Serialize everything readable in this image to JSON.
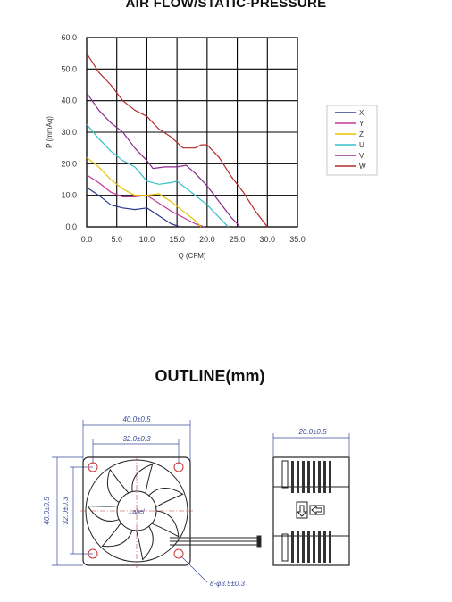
{
  "chart_data": {
    "type": "line",
    "title": "AIR FLOW/STATIC-PRESSURE",
    "xlabel": "Q (CFM)",
    "ylabel": "P (mmAq)",
    "xlim": [
      0,
      35
    ],
    "ylim": [
      0,
      60
    ],
    "x_ticks": [
      "0.0",
      "5.0",
      "10.0",
      "15.0",
      "20.0",
      "25.0",
      "30.0",
      "35.0"
    ],
    "y_ticks": [
      "0.0",
      "10.0",
      "20.0",
      "30.0",
      "40.0",
      "50.0",
      "60.0"
    ],
    "grid": true,
    "legend_position": "right",
    "series": [
      {
        "name": "X",
        "color": "#2b3a8c",
        "x": [
          0,
          2,
          4,
          6,
          8,
          10,
          12,
          14,
          15.5
        ],
        "y": [
          12.5,
          10,
          7,
          6,
          5.5,
          6,
          3.5,
          1,
          0
        ]
      },
      {
        "name": "Y",
        "color": "#c0399a",
        "x": [
          0,
          2,
          4,
          6,
          8,
          10,
          12,
          14,
          16,
          18,
          19.5
        ],
        "y": [
          16.5,
          14,
          11,
          9.5,
          9.5,
          10,
          7.5,
          5,
          3,
          1,
          0
        ]
      },
      {
        "name": "Z",
        "color": "#e8c200",
        "x": [
          0,
          2,
          4,
          6,
          8,
          10,
          12,
          14,
          16,
          18,
          19
        ],
        "y": [
          22,
          19,
          15,
          12,
          10,
          10,
          10.5,
          8,
          5,
          2,
          0
        ]
      },
      {
        "name": "U",
        "color": "#35bfc8",
        "x": [
          0,
          2,
          4,
          6,
          8,
          10,
          12,
          14,
          15,
          16,
          18,
          20,
          22,
          23.5
        ],
        "y": [
          32.5,
          28,
          24,
          21,
          19,
          14.5,
          13.5,
          14,
          14.5,
          13,
          10,
          7,
          3,
          0
        ]
      },
      {
        "name": "V",
        "color": "#8a2a8e",
        "x": [
          0,
          2,
          4,
          6,
          8,
          10,
          11,
          13,
          15,
          16.5,
          18,
          20,
          22,
          24,
          25.5
        ],
        "y": [
          42.5,
          37,
          33,
          30,
          25,
          21,
          18.5,
          19,
          19,
          19.5,
          17,
          13,
          8,
          3,
          0
        ]
      },
      {
        "name": "W",
        "color": "#b22b2b",
        "x": [
          0,
          2,
          4,
          6,
          8,
          10,
          12,
          14,
          16,
          18,
          19,
          20,
          22,
          24,
          26,
          28,
          30
        ],
        "y": [
          55,
          49,
          45,
          40,
          37,
          35,
          31,
          28.5,
          25,
          25,
          26,
          26,
          22,
          16,
          11,
          5,
          0
        ]
      }
    ]
  },
  "outline": {
    "title": "OUTLINE(mm)",
    "dim_width": "40.0±0.5",
    "dim_hole_pitch": "32.0±0.3",
    "dim_depth": "20.0±0.5",
    "dim_height": "40.0±0.5",
    "dim_hole_pitch_v": "32.0±0.3",
    "dim_holes": "8-φ3.5±0.3",
    "label_text": "Label"
  }
}
